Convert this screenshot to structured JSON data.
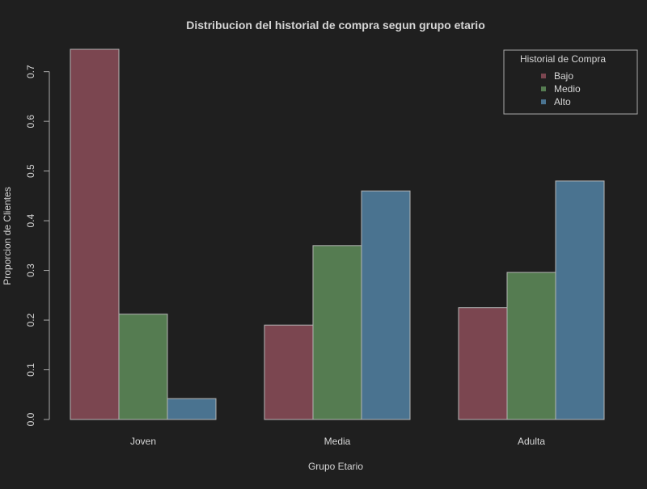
{
  "colors": {
    "background": "#1f1f1f",
    "text": "#d6d6d6",
    "axis": "#aaaaaa",
    "bar_stroke": "#b4b4b4"
  },
  "chart_data": {
    "type": "bar",
    "title": "Distribucion del historial de compra segun grupo etario",
    "xlabel": "Grupo Etario",
    "ylabel": "Proporcion de Clientes",
    "categories": [
      "Joven",
      "Media",
      "Adulta"
    ],
    "series": [
      {
        "name": "Bajo",
        "color": "#7b4650",
        "values": [
          0.745,
          0.19,
          0.225
        ]
      },
      {
        "name": "Medio",
        "color": "#557c51",
        "values": [
          0.212,
          0.35,
          0.296
        ]
      },
      {
        "name": "Alto",
        "color": "#4a7390",
        "values": [
          0.042,
          0.46,
          0.48
        ]
      }
    ],
    "ylim": [
      0,
      0.745
    ],
    "yticks": [
      0.0,
      0.1,
      0.2,
      0.3,
      0.4,
      0.5,
      0.6,
      0.7
    ],
    "ytick_labels": [
      "0.0",
      "0.1",
      "0.2",
      "0.3",
      "0.4",
      "0.5",
      "0.6",
      "0.7"
    ],
    "grid": false,
    "legend": {
      "title": "Historial de Compra",
      "placement": "top-right"
    }
  }
}
